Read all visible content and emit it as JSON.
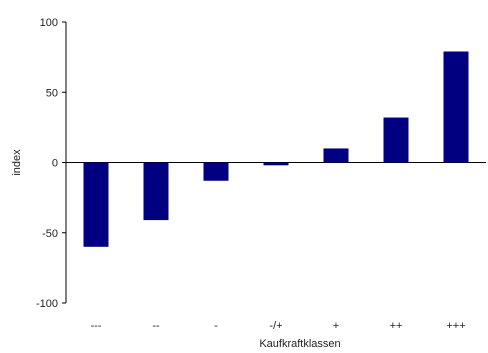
{
  "chart_data": {
    "type": "bar",
    "title": "",
    "xlabel": "Kaufkraftklassen",
    "ylabel": "index",
    "categories": [
      "---",
      "--",
      "-",
      "-/+",
      "+",
      "++",
      "+++"
    ],
    "values": [
      -60,
      -41,
      -13,
      -2,
      10,
      32,
      79
    ],
    "ylim": [
      -100,
      100
    ],
    "yticks": [
      -100,
      -50,
      0,
      50,
      100
    ],
    "ytick_labels": [
      "-100",
      "-50",
      "0",
      "50",
      "100"
    ],
    "grid": false,
    "legend": "none",
    "bar_color": "#000080"
  }
}
